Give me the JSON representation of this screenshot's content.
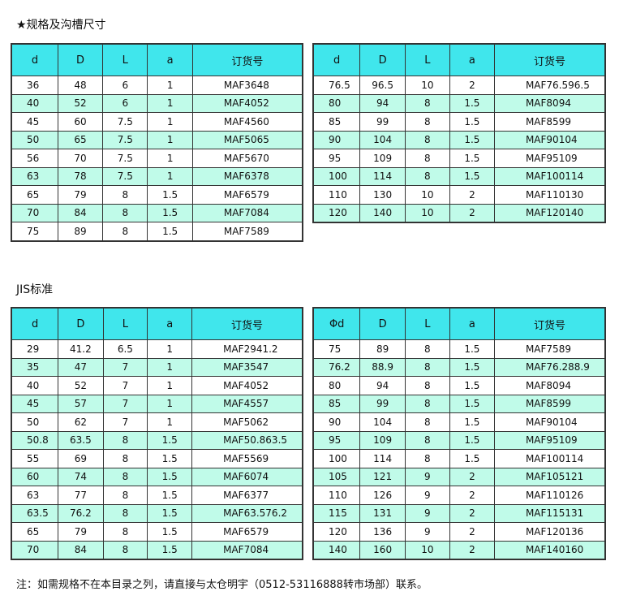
{
  "section1_title": "★规格及沟槽尺寸",
  "section2_title": "JIS标准",
  "footer": "注：如需规格不在本目录之列，请直接与太仓明宇（0512-53116888转市场部）联系。",
  "colors": {
    "header": "#40e6ec",
    "stripe": "#c0fbe9"
  },
  "tables": [
    {
      "headers": [
        "d",
        "D",
        "L",
        "a",
        "订货号"
      ],
      "rows": [
        [
          "36",
          "48",
          "6",
          "1",
          "MAF3648"
        ],
        [
          "40",
          "52",
          "6",
          "1",
          "MAF4052"
        ],
        [
          "45",
          "60",
          "7.5",
          "1",
          "MAF4560"
        ],
        [
          "50",
          "65",
          "7.5",
          "1",
          "MAF5065"
        ],
        [
          "56",
          "70",
          "7.5",
          "1",
          "MAF5670"
        ],
        [
          "63",
          "78",
          "7.5",
          "1",
          "MAF6378"
        ],
        [
          "65",
          "79",
          "8",
          "1.5",
          "MAF6579"
        ],
        [
          "70",
          "84",
          "8",
          "1.5",
          "MAF7084"
        ],
        [
          "75",
          "89",
          "8",
          "1.5",
          "MAF7589"
        ]
      ]
    },
    {
      "headers": [
        "d",
        "D",
        "L",
        "a",
        "订货号"
      ],
      "rows": [
        [
          "76.5",
          "96.5",
          "10",
          "2",
          "MAF76.596.5"
        ],
        [
          "80",
          "94",
          "8",
          "1.5",
          "MAF8094"
        ],
        [
          "85",
          "99",
          "8",
          "1.5",
          "MAF8599"
        ],
        [
          "90",
          "104",
          "8",
          "1.5",
          "MAF90104"
        ],
        [
          "95",
          "109",
          "8",
          "1.5",
          "MAF95109"
        ],
        [
          "100",
          "114",
          "8",
          "1.5",
          "MAF100114"
        ],
        [
          "110",
          "130",
          "10",
          "2",
          "MAF110130"
        ],
        [
          "120",
          "140",
          "10",
          "2",
          "MAF120140"
        ]
      ]
    },
    {
      "headers": [
        "d",
        "D",
        "L",
        "a",
        "订货号"
      ],
      "rows": [
        [
          "29",
          "41.2",
          "6.5",
          "1",
          "MAF2941.2"
        ],
        [
          "35",
          "47",
          "7",
          "1",
          "MAF3547"
        ],
        [
          "40",
          "52",
          "7",
          "1",
          "MAF4052"
        ],
        [
          "45",
          "57",
          "7",
          "1",
          "MAF4557"
        ],
        [
          "50",
          "62",
          "7",
          "1",
          "MAF5062"
        ],
        [
          "50.8",
          "63.5",
          "8",
          "1.5",
          "MAF50.863.5"
        ],
        [
          "55",
          "69",
          "8",
          "1.5",
          "MAF5569"
        ],
        [
          "60",
          "74",
          "8",
          "1.5",
          "MAF6074"
        ],
        [
          "63",
          "77",
          "8",
          "1.5",
          "MAF6377"
        ],
        [
          "63.5",
          "76.2",
          "8",
          "1.5",
          "MAF63.576.2"
        ],
        [
          "65",
          "79",
          "8",
          "1.5",
          "MAF6579"
        ],
        [
          "70",
          "84",
          "8",
          "1.5",
          "MAF7084"
        ]
      ]
    },
    {
      "headers": [
        "Φd",
        "D",
        "L",
        "a",
        "订货号"
      ],
      "rows": [
        [
          "75",
          "89",
          "8",
          "1.5",
          "MAF7589"
        ],
        [
          "76.2",
          "88.9",
          "8",
          "1.5",
          "MAF76.288.9"
        ],
        [
          "80",
          "94",
          "8",
          "1.5",
          "MAF8094"
        ],
        [
          "85",
          "99",
          "8",
          "1.5",
          "MAF8599"
        ],
        [
          "90",
          "104",
          "8",
          "1.5",
          "MAF90104"
        ],
        [
          "95",
          "109",
          "8",
          "1.5",
          "MAF95109"
        ],
        [
          "100",
          "114",
          "8",
          "1.5",
          "MAF100114"
        ],
        [
          "105",
          "121",
          "9",
          "2",
          "MAF105121"
        ],
        [
          "110",
          "126",
          "9",
          "2",
          "MAF110126"
        ],
        [
          "115",
          "131",
          "9",
          "2",
          "MAF115131"
        ],
        [
          "120",
          "136",
          "9",
          "2",
          "MAF120136"
        ],
        [
          "140",
          "160",
          "10",
          "2",
          "MAF140160"
        ]
      ]
    }
  ]
}
